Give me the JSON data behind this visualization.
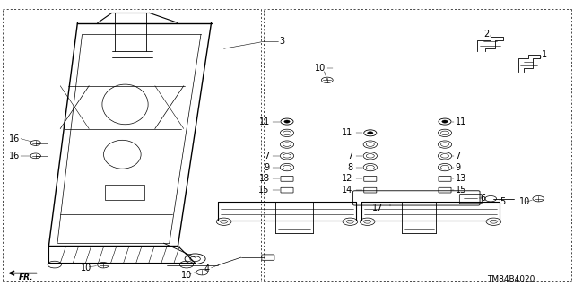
{
  "bg_color": "#ffffff",
  "diagram_code": "TM84B4020",
  "line_color": "#000000",
  "label_fontsize": 7
}
